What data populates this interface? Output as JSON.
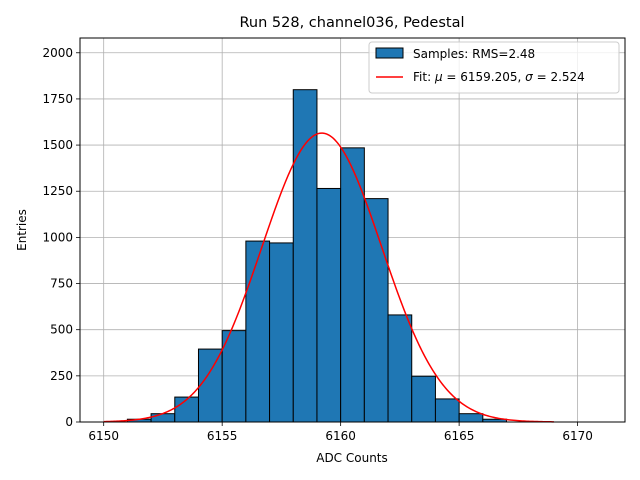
{
  "chart_data": {
    "type": "bar",
    "title": "Run 528, channel036, Pedestal",
    "xlabel": "ADC Counts",
    "ylabel": "Entries",
    "xlim": [
      6149,
      6172
    ],
    "ylim": [
      0,
      2080
    ],
    "grid": true,
    "legend_position": "top-right",
    "x_ticks": [
      6150,
      6155,
      6160,
      6165,
      6170
    ],
    "y_ticks": [
      0,
      250,
      500,
      750,
      1000,
      1250,
      1500,
      1750,
      2000
    ],
    "bins": [
      {
        "x0": 6151,
        "x1": 6152,
        "value": 15
      },
      {
        "x0": 6152,
        "x1": 6153,
        "value": 45
      },
      {
        "x0": 6153,
        "x1": 6154,
        "value": 135
      },
      {
        "x0": 6154,
        "x1": 6155,
        "value": 395
      },
      {
        "x0": 6155,
        "x1": 6156,
        "value": 495
      },
      {
        "x0": 6156,
        "x1": 6157,
        "value": 980
      },
      {
        "x0": 6157,
        "x1": 6158,
        "value": 970
      },
      {
        "x0": 6158,
        "x1": 6159,
        "value": 1800
      },
      {
        "x0": 6159,
        "x1": 6160,
        "value": 1265
      },
      {
        "x0": 6160,
        "x1": 6161,
        "value": 1485
      },
      {
        "x0": 6161,
        "x1": 6162,
        "value": 1210
      },
      {
        "x0": 6162,
        "x1": 6163,
        "value": 580
      },
      {
        "x0": 6163,
        "x1": 6164,
        "value": 248
      },
      {
        "x0": 6164,
        "x1": 6165,
        "value": 125
      },
      {
        "x0": 6165,
        "x1": 6166,
        "value": 45
      },
      {
        "x0": 6166,
        "x1": 6167,
        "value": 15
      }
    ],
    "fit": {
      "function": "gaussian",
      "mu": 6159.205,
      "sigma": 2.524,
      "amplitude": 1565,
      "x_range": [
        6150,
        6169
      ],
      "color": "#ff0000"
    },
    "bar_color": "#1f77b4",
    "bar_edge_color": "#000000",
    "legend": [
      {
        "label": "Samples: RMS=2.48",
        "kind": "patch",
        "color": "#1f77b4"
      },
      {
        "label_prefix": "Fit: ",
        "mu_symbol": "μ",
        "mu_text": " = 6159.205, ",
        "sigma_symbol": "σ",
        "sigma_text": " = 2.524",
        "kind": "line",
        "color": "#ff0000"
      }
    ]
  }
}
